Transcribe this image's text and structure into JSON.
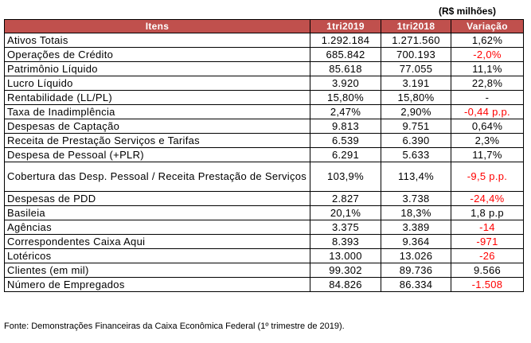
{
  "unit_label": "(R$ milhões)",
  "header": {
    "item": "Itens",
    "col1": "1tri2019",
    "col2": "1tri2018",
    "col3": "Variação"
  },
  "rows": [
    {
      "item": "Ativos Totais",
      "v2019": "1.292.184",
      "v2018": "1.271.560",
      "var": "1,62%"
    },
    {
      "item": "Operações de Crédito",
      "v2019": "685.842",
      "v2018": "700.193",
      "var": "-2,0%"
    },
    {
      "item": "Patrimônio Líquido",
      "v2019": "85.618",
      "v2018": "77.055",
      "var": "11,1%"
    },
    {
      "item": "Lucro Líquido",
      "v2019": "3.920",
      "v2018": "3.191",
      "var": "22,8%"
    },
    {
      "item": "Rentabilidade (LL/PL)",
      "v2019": "15,80%",
      "v2018": "15,80%",
      "var": "-"
    },
    {
      "item": "Taxa de Inadimplência",
      "v2019": "2,47%",
      "v2018": "2,90%",
      "var": "-0,44 p.p."
    },
    {
      "item": "Despesas de Captação",
      "v2019": "9.813",
      "v2018": "9.751",
      "var": "0,64%"
    },
    {
      "item": "Receita de Prestação Serviços e Tarifas",
      "v2019": "6.539",
      "v2018": "6.390",
      "var": "2,3%"
    },
    {
      "item": "Despesa de Pessoal (+PLR)",
      "v2019": "6.291",
      "v2018": "5.633",
      "var": "11,7%"
    },
    {
      "item": "Cobertura das Desp. Pessoal / Receita Prestação de Serviços",
      "v2019": "103,9%",
      "v2018": "113,4%",
      "var": "-9,5 p.p."
    },
    {
      "item": "Despesas de PDD",
      "v2019": "2.827",
      "v2018": "3.738",
      "var": "-24,4%"
    },
    {
      "item": "Basileia",
      "v2019": "20,1%",
      "v2018": "18,3%",
      "var": "1,8 p.p"
    },
    {
      "item": "Agências",
      "v2019": "3.375",
      "v2018": "3.389",
      "var": "-14"
    },
    {
      "item": "Correspondentes Caixa Aqui",
      "v2019": "8.393",
      "v2018": "9.364",
      "var": "-971"
    },
    {
      "item": "Lotéricos",
      "v2019": "13.000",
      "v2018": "13.026",
      "var": "-26"
    },
    {
      "item": "Clientes (em mil)",
      "v2019": "99.302",
      "v2018": "89.736",
      "var": "9.566"
    },
    {
      "item": "Número de Empregados",
      "v2019": "84.826",
      "v2018": "86.334",
      "var": "-1.508"
    }
  ],
  "footer": "Fonte: Demonstrações Financeiras da Caixa Econômica Federal (1º trimestre de 2019)."
}
